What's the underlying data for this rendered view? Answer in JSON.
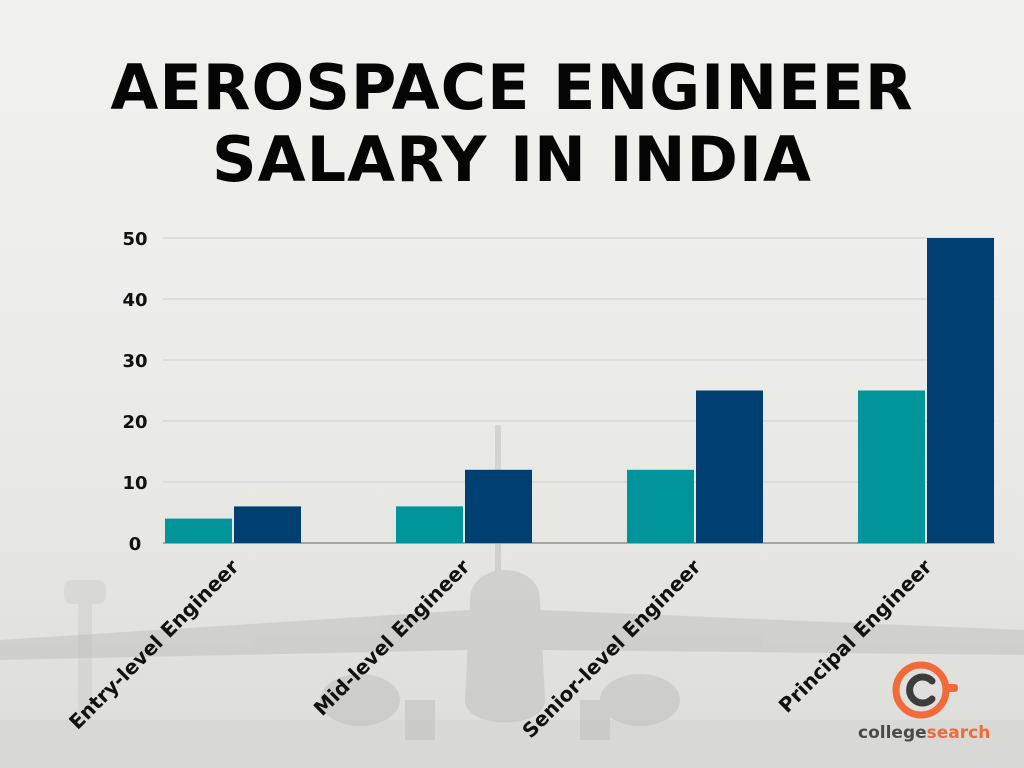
{
  "title": {
    "line1": "AEROSPACE ENGINEER",
    "line2": "SALARY IN INDIA"
  },
  "logo": {
    "word1": "college",
    "word2": "search"
  },
  "colors": {
    "series1": "#00959a",
    "series2": "#003f72",
    "grid": "#cfcfcf",
    "text": "#111111",
    "logo_orange": "#f26a3c"
  },
  "chart_data": {
    "type": "bar",
    "categories": [
      "Entry-level Engineer",
      "Mid-level Engineer",
      "Senior-level Engineer",
      "Principal Engineer"
    ],
    "series": [
      {
        "values": [
          4,
          6,
          12,
          25
        ]
      },
      {
        "values": [
          6,
          12,
          25,
          50
        ]
      }
    ],
    "y_ticks": [
      0,
      10,
      20,
      30,
      40,
      50
    ],
    "ylim": [
      0,
      50
    ],
    "grid": true,
    "legend": "none"
  }
}
